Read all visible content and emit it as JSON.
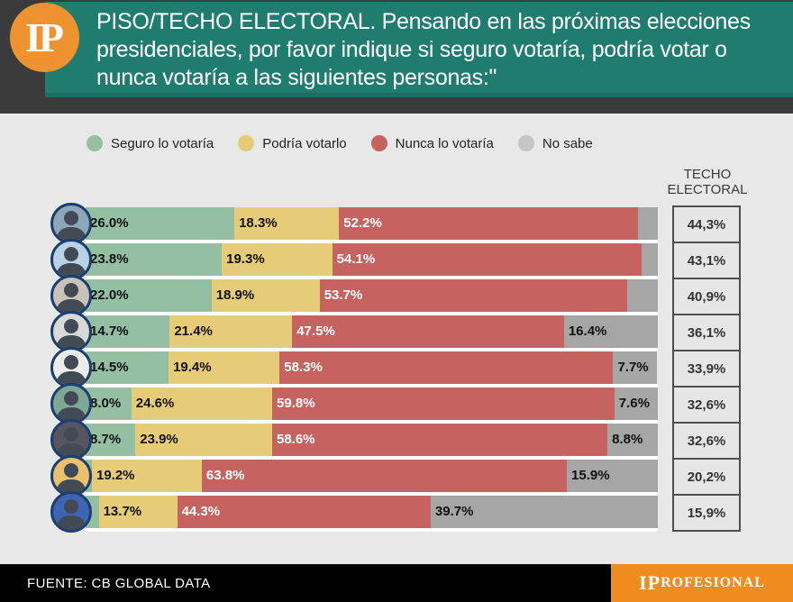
{
  "header": {
    "logo_text": "IP",
    "logo_bg": "#ef9331",
    "panel_bg": "#1f7c6f",
    "title": "PISO/TECHO ELECTORAL. Pensando en las próximas elecciones presidenciales, por favor indique si seguro votaría, podría votar o nunca votaría a las siguientes personas:\""
  },
  "legend": [
    {
      "key": "seguro",
      "label": "Seguro lo votaría",
      "color": "#95bfa2"
    },
    {
      "key": "podria",
      "label": "Podría votarlo",
      "color": "#e6cc77"
    },
    {
      "key": "nunca",
      "label": "Nunca lo votaría",
      "color": "#c66260"
    },
    {
      "key": "no_sabe",
      "label": "No sabe",
      "color": "#c6c6c6"
    }
  ],
  "techo_header": {
    "line1": "TECHO",
    "line2": "ELECTORAL"
  },
  "colors": {
    "seguro": "#95bfa2",
    "podria": "#e6cc77",
    "nunca": "#c66260",
    "no_sabe": "#a6a6a6"
  },
  "chart_data": {
    "type": "bar",
    "stacked": true,
    "orientation": "horizontal",
    "unit": "%",
    "xlim": [
      0,
      100
    ],
    "legend_position": "top",
    "series_names": [
      "Seguro lo votaría",
      "Podría votarlo",
      "Nunca lo votaría",
      "No sabe"
    ],
    "rows": [
      {
        "avatar_bg": "#8ea7b8",
        "techo": "44,3%",
        "values": {
          "seguro": 26.0,
          "podria": 18.3,
          "nunca": 52.2,
          "no_sabe": 3.5
        },
        "labels": {
          "seguro": "26.0%",
          "podria": "18.3%",
          "nunca": "52.2%",
          "no_sabe": ""
        }
      },
      {
        "avatar_bg": "#b9d2e8",
        "techo": "43,1%",
        "values": {
          "seguro": 23.8,
          "podria": 19.3,
          "nunca": 54.1,
          "no_sabe": 2.8
        },
        "labels": {
          "seguro": "23.8%",
          "podria": "19.3%",
          "nunca": "54.1%",
          "no_sabe": ""
        }
      },
      {
        "avatar_bg": "#c9c2b8",
        "techo": "40,9%",
        "values": {
          "seguro": 22.0,
          "podria": 18.9,
          "nunca": 53.7,
          "no_sabe": 5.4
        },
        "labels": {
          "seguro": "22.0%",
          "podria": "18.9%",
          "nunca": "53.7%",
          "no_sabe": ""
        }
      },
      {
        "avatar_bg": "#d9d9d9",
        "techo": "36,1%",
        "values": {
          "seguro": 14.7,
          "podria": 21.4,
          "nunca": 47.5,
          "no_sabe": 16.4
        },
        "labels": {
          "seguro": "14.7%",
          "podria": "21.4%",
          "nunca": "47.5%",
          "no_sabe": "16.4%"
        }
      },
      {
        "avatar_bg": "#ececea",
        "techo": "33,9%",
        "values": {
          "seguro": 14.5,
          "podria": 19.4,
          "nunca": 58.3,
          "no_sabe": 7.7
        },
        "labels": {
          "seguro": "14.5%",
          "podria": "19.4%",
          "nunca": "58.3%",
          "no_sabe": "7.7%"
        }
      },
      {
        "avatar_bg": "#7fa894",
        "techo": "32,6%",
        "values": {
          "seguro": 8.0,
          "podria": 24.6,
          "nunca": 59.8,
          "no_sabe": 7.6
        },
        "labels": {
          "seguro": "8.0%",
          "podria": "24.6%",
          "nunca": "59.8%",
          "no_sabe": "7.6%"
        }
      },
      {
        "avatar_bg": "#585462",
        "techo": "32,6%",
        "values": {
          "seguro": 8.7,
          "podria": 23.9,
          "nunca": 58.6,
          "no_sabe": 8.8
        },
        "labels": {
          "seguro": "8.7%",
          "podria": "23.9%",
          "nunca": "58.6%",
          "no_sabe": "8.8%"
        }
      },
      {
        "avatar_bg": "#e9c06c",
        "techo": "20,2%",
        "values": {
          "seguro": 1.1,
          "podria": 19.2,
          "nunca": 63.8,
          "no_sabe": 15.9
        },
        "labels": {
          "seguro": "",
          "podria": "19.2%",
          "nunca": "63.8%",
          "no_sabe": "15.9%"
        }
      },
      {
        "avatar_bg": "#3f63b5",
        "techo": "15,9%",
        "values": {
          "seguro": 2.3,
          "podria": 13.7,
          "nunca": 44.3,
          "no_sabe": 39.7
        },
        "labels": {
          "seguro": "",
          "podria": "13.7%",
          "nunca": "44.3%",
          "no_sabe": "39.7%"
        }
      }
    ]
  },
  "footer": {
    "source": "FUENTE: CB GLOBAL DATA",
    "brand_big": "IP",
    "brand_small": "ROFESIONAL",
    "brand_bg": "#ee8c1e"
  }
}
